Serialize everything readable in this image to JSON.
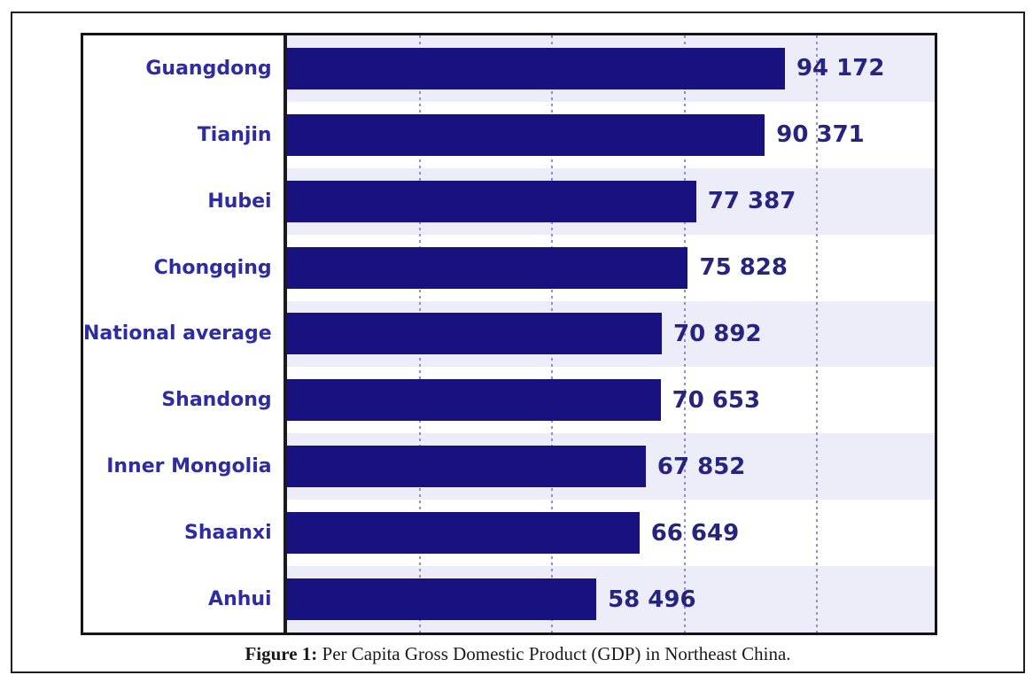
{
  "figure": {
    "caption_prefix": "Figure 1:",
    "caption_text": " Per Capita Gross Domestic Product (GDP) in Northeast China."
  },
  "chart_data": {
    "type": "bar",
    "orientation": "horizontal",
    "title": "",
    "xlabel": "",
    "ylabel": "",
    "categories": [
      "Guangdong",
      "Tianjin",
      "Hubei",
      "Chongqing",
      "National average",
      "Shandong",
      "Inner Mongolia",
      "Shaanxi",
      "Anhui"
    ],
    "values": [
      94172,
      90371,
      77387,
      75828,
      70892,
      70653,
      67852,
      66649,
      58496
    ],
    "value_labels": [
      "94 172",
      "90 371",
      "77 387",
      "75 828",
      "70 892",
      "70 653",
      "67 852",
      "66 649",
      "58 496"
    ],
    "xlim": [
      0,
      122500
    ],
    "gridlines": [
      25000,
      50000,
      75000,
      100000
    ],
    "grid_style": "dotted-vertical",
    "legend": "none",
    "row_stripes": true,
    "colors": {
      "bar": "#171280",
      "category_label": "#2e2ca3",
      "value_label": "#26247f",
      "stripe_odd": "#ededfa",
      "stripe_even": "#ffffff",
      "gridline": "#8f8fd8",
      "border": "#141414"
    }
  }
}
